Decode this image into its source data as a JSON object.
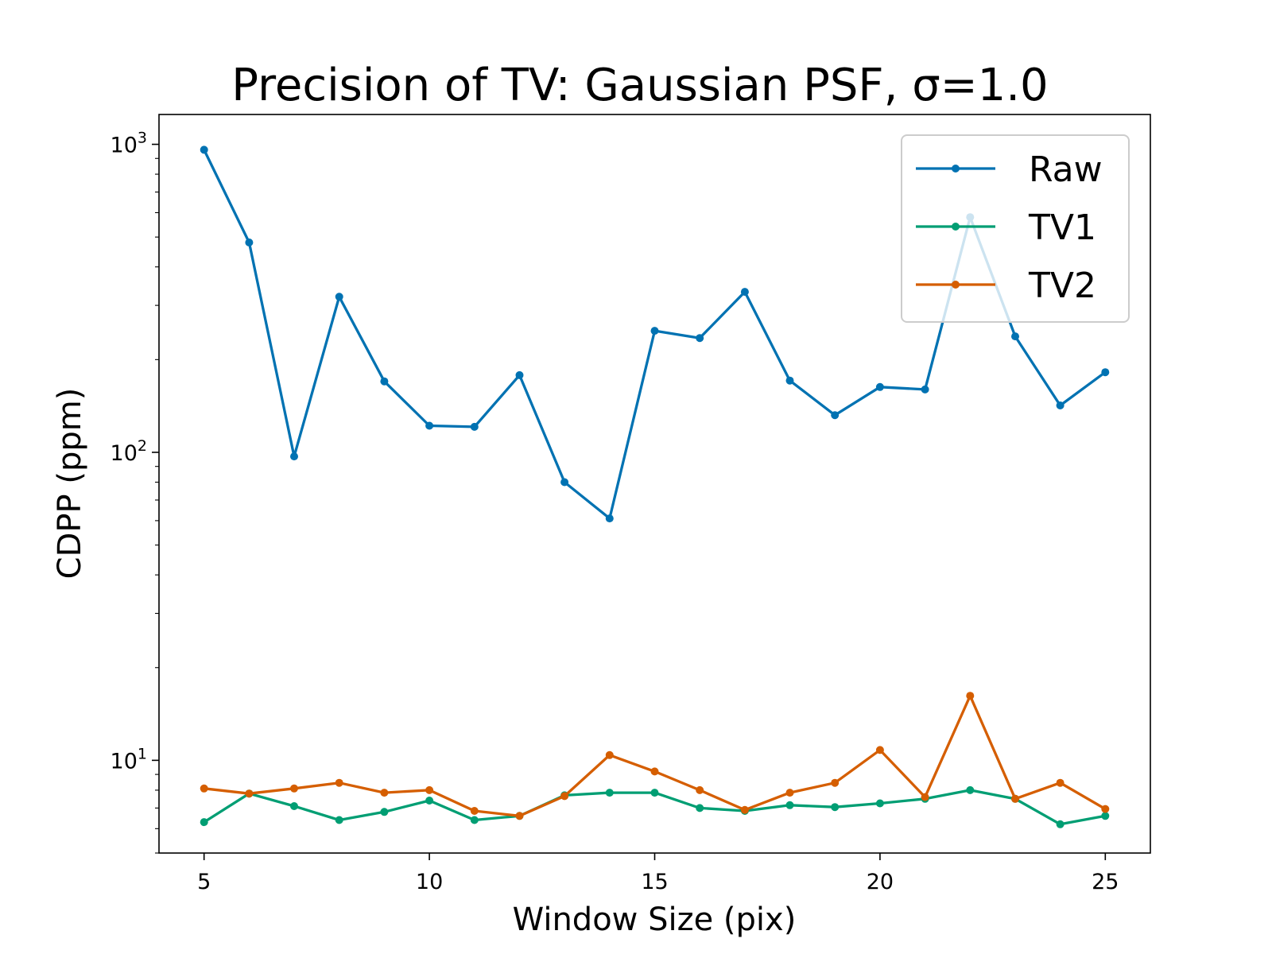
{
  "chart_data": {
    "type": "line",
    "title": "Precision of TV: Gaussian PSF, σ=1.0",
    "xlabel": "Window Size (pix)",
    "ylabel": "CDPP (ppm)",
    "yscale": "log",
    "xlim": [
      4,
      26
    ],
    "ylim": [
      5,
      1250
    ],
    "xticks": [
      5,
      10,
      15,
      20,
      25
    ],
    "yticks": [
      {
        "value": 10,
        "base": "10",
        "exp": "1"
      },
      {
        "value": 100,
        "base": "10",
        "exp": "2"
      },
      {
        "value": 1000,
        "base": "10",
        "exp": "3"
      }
    ],
    "grid": false,
    "legend_position": "top-right",
    "x": [
      5,
      6,
      7,
      8,
      9,
      10,
      11,
      12,
      13,
      14,
      15,
      16,
      17,
      18,
      19,
      20,
      21,
      22,
      23,
      24,
      25
    ],
    "series": [
      {
        "name": "Raw",
        "color": "#0072b2",
        "values": [
          960,
          480,
          97,
          320,
          170,
          122,
          121,
          178,
          80,
          61,
          248,
          235,
          332,
          171,
          132,
          163,
          160,
          580,
          238,
          142,
          182
        ]
      },
      {
        "name": "TV1",
        "color": "#009e73",
        "values": [
          6.3,
          7.8,
          7.1,
          6.4,
          6.8,
          7.4,
          6.4,
          6.6,
          7.7,
          7.85,
          7.85,
          7.0,
          6.85,
          7.15,
          7.05,
          7.25,
          7.5,
          8.0,
          7.5,
          6.2,
          6.6
        ]
      },
      {
        "name": "TV2",
        "color": "#d55e00",
        "values": [
          8.1,
          7.8,
          8.1,
          8.45,
          7.85,
          8.0,
          6.85,
          6.6,
          7.65,
          10.4,
          9.2,
          8.0,
          6.9,
          7.85,
          8.45,
          10.8,
          7.6,
          16.2,
          7.5,
          8.45,
          6.95
        ]
      }
    ]
  }
}
